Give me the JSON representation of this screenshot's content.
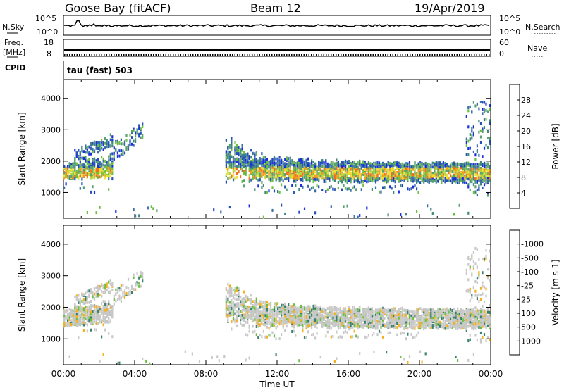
{
  "header": {
    "title_left": "Goose Bay (fitACF)",
    "title_center": "Beam 12",
    "title_right": "19/Apr/2019"
  },
  "top_panels": {
    "nsky_label": "N.Sky",
    "nsky_ticks": [
      "10^5",
      "10^0"
    ],
    "nsearch_label": "N.Search",
    "nsearch_ticks": [
      "10^5",
      "10^0"
    ],
    "freq_label_top": "Freq.",
    "freq_label_bottom": "[MHz]",
    "freq_ticks": [
      "18",
      "8"
    ],
    "nave_label": "Nave",
    "nave_ticks": [
      "60",
      "0"
    ],
    "cpid_label": "CPID",
    "cpid_value": "tau (fast) 503"
  },
  "chart_data": [
    {
      "type": "heatmap",
      "title": "",
      "xlabel": "Time UT",
      "ylabel": "Slant Range [km]",
      "x_ticks": [
        "00:00",
        "04:00",
        "08:00",
        "12:00",
        "16:00",
        "20:00",
        "00:00"
      ],
      "xlim_hours": [
        0,
        24
      ],
      "ylim_km": [
        180,
        4600
      ],
      "y_ticks": [
        1000,
        2000,
        3000,
        4000
      ],
      "colorbar": {
        "label": "Power [dB]",
        "ticks": [
          "4",
          "8",
          "12",
          "16",
          "20",
          "24",
          "28"
        ],
        "colors": [
          "#1a2fe0",
          "#2450b8",
          "#3b6ea8",
          "#3e8a78",
          "#5aa070",
          "#6cc040",
          "#b8d83c",
          "#f0e030",
          "#f5a020",
          "#f07020",
          "#e83020",
          "#d81818"
        ]
      },
      "features": [
        {
          "start_h": 0.0,
          "end_h": 2.8,
          "range_min_km": 1100,
          "range_max_km": 2600,
          "dominant_db": 20
        },
        {
          "start_h": 9.0,
          "end_h": 24.0,
          "range_min_km": 900,
          "range_max_km": 2400,
          "dominant_db": 16
        },
        {
          "start_h": 22.6,
          "end_h": 24.0,
          "range_min_km": 1000,
          "range_max_km": 4200,
          "dominant_db": 8
        }
      ]
    },
    {
      "type": "heatmap",
      "title": "",
      "xlabel": "Time UT",
      "ylabel": "Slant Range [km]",
      "x_ticks": [
        "00:00",
        "04:00",
        "08:00",
        "12:00",
        "16:00",
        "20:00",
        "00:00"
      ],
      "xlim_hours": [
        0,
        24
      ],
      "ylim_km": [
        180,
        4600
      ],
      "y_ticks": [
        1000,
        2000,
        3000,
        4000
      ],
      "colorbar": {
        "label": "Velocity [m s-1]",
        "ticks": [
          "1000",
          "500",
          "100",
          "25",
          "-25",
          "-100",
          "-500",
          "-1000"
        ],
        "colors": [
          "#1a2fe0",
          "#2450b8",
          "#3a8070",
          "#2e9a48",
          "#6cc040",
          "#a8d04a",
          "#c8c8c8",
          "#f0e030",
          "#f5b020",
          "#f08020",
          "#e84018",
          "#e01010"
        ]
      },
      "features": [
        {
          "start_h": 0.0,
          "end_h": 2.8,
          "range_min_km": 1100,
          "range_max_km": 2600,
          "dominant_velocity": 0
        },
        {
          "start_h": 9.0,
          "end_h": 24.0,
          "range_min_km": 900,
          "range_max_km": 2400,
          "dominant_velocity": 0
        }
      ]
    }
  ]
}
